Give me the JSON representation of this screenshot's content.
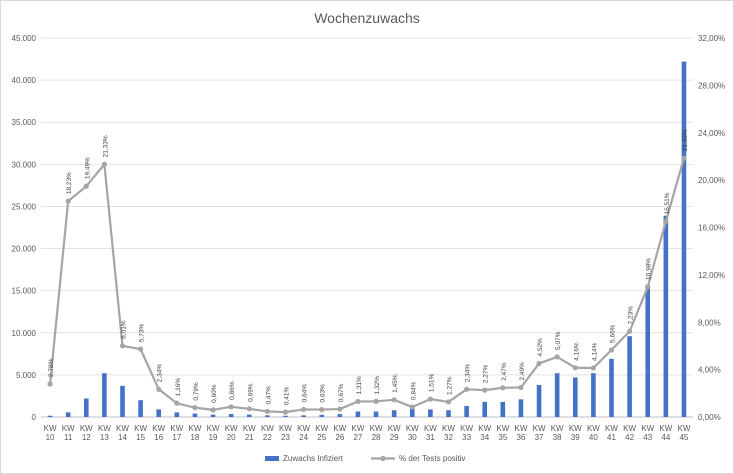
{
  "chart_data": {
    "type": "bar",
    "title": "Wochenzuwachs",
    "categories": [
      "KW 10",
      "KW 11",
      "KW 12",
      "KW 13",
      "KW 14",
      "KW 15",
      "KW 16",
      "KW 17",
      "KW 18",
      "KW 19",
      "KW 20",
      "KW 21",
      "KW 22",
      "KW 23",
      "KW 24",
      "KW 25",
      "KW 26",
      "KW 27",
      "KW 28",
      "KW 29",
      "KW 30",
      "KW 31",
      "KW 32",
      "KW 33",
      "KW 34",
      "KW 35",
      "KW 36",
      "KW 37",
      "KW 38",
      "KW 39",
      "KW 40",
      "KW 41",
      "KW 42",
      "KW 43",
      "KW 44",
      "KW 45"
    ],
    "series": [
      {
        "name": "Zuwachs Infiziert",
        "type": "bar",
        "axis": "left",
        "color": "#4472c4",
        "values": [
          150,
          550,
          2200,
          5200,
          3700,
          2000,
          900,
          550,
          400,
          280,
          350,
          290,
          200,
          150,
          200,
          250,
          350,
          650,
          650,
          800,
          950,
          900,
          800,
          1300,
          1800,
          1800,
          2100,
          3800,
          5200,
          4700,
          5200,
          6900,
          9600,
          15700,
          23900,
          42200
        ]
      },
      {
        "name": "% der Tests positiv",
        "type": "line",
        "axis": "right",
        "color": "#a5a5a5",
        "values": [
          2.78,
          18.23,
          19.49,
          21.33,
          6.01,
          5.73,
          2.34,
          1.16,
          0.79,
          0.6,
          0.86,
          0.69,
          0.47,
          0.41,
          0.64,
          0.63,
          0.67,
          1.31,
          1.32,
          1.45,
          0.84,
          1.51,
          1.27,
          2.34,
          2.27,
          2.47,
          2.49,
          4.52,
          5.07,
          4.16,
          4.14,
          5.66,
          7.23,
          10.98,
          16.51,
          21.85
        ],
        "labels": [
          "2,78%",
          "18,23%",
          "19,49%",
          "21,33%",
          "6,01%",
          "5,73%",
          "2,34%",
          "1,16%",
          "0,79%",
          "0,60%",
          "0,86%",
          "0,69%",
          "0,47%",
          "0,41%",
          "0,64%",
          "0,63%",
          "0,67%",
          "1,31%",
          "1,32%",
          "1,45%",
          "0,84%",
          "1,51%",
          "1,27%",
          "2,34%",
          "2,27%",
          "2,47%",
          "2,49%",
          "4,52%",
          "5,07%",
          "4,16%",
          "4,14%",
          "5,66%",
          "7,23%",
          "10,98%",
          "16,51%",
          "21,85%"
        ]
      }
    ],
    "left_axis": {
      "ylim": [
        0,
        45000
      ],
      "ticks": [
        0,
        5000,
        10000,
        15000,
        20000,
        25000,
        30000,
        35000,
        40000,
        45000
      ],
      "tick_labels": [
        "0",
        "5.000",
        "10.000",
        "15.000",
        "20.000",
        "25.000",
        "30.000",
        "35.000",
        "40.000",
        "45.000"
      ]
    },
    "right_axis": {
      "ylim": [
        0,
        32
      ],
      "ticks": [
        0,
        4,
        8,
        12,
        16,
        20,
        24,
        28,
        32
      ],
      "tick_labels": [
        "0,00%",
        "4,00%",
        "8,00%",
        "12,00%",
        "16,00%",
        "20,00%",
        "24,00%",
        "28,00%",
        "32,00%"
      ]
    },
    "grid": true,
    "legend_position": "bottom",
    "xlabel": "",
    "ylabel": ""
  }
}
